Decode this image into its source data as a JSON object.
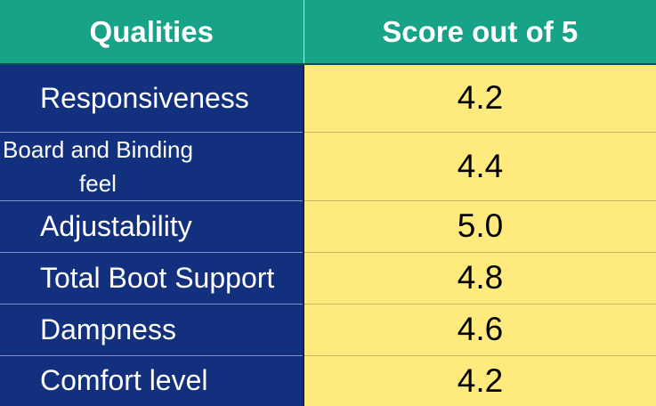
{
  "chart_data": {
    "type": "table",
    "columns": [
      "Qualities",
      "Score out of 5"
    ],
    "rows": [
      {
        "quality": "Responsiveness",
        "score": "4.2"
      },
      {
        "quality": "Board and Binding feel",
        "score": "4.4"
      },
      {
        "quality": "Adjustability",
        "score": "5.0"
      },
      {
        "quality": "Total Boot Support",
        "score": "4.8"
      },
      {
        "quality": "Dampness",
        "score": "4.6"
      },
      {
        "quality": "Comfort level",
        "score": "4.2"
      }
    ]
  },
  "colors": {
    "header_background": "#17a387",
    "quality_column_background": "#12307e",
    "score_column_background": "#ffeb7d"
  }
}
